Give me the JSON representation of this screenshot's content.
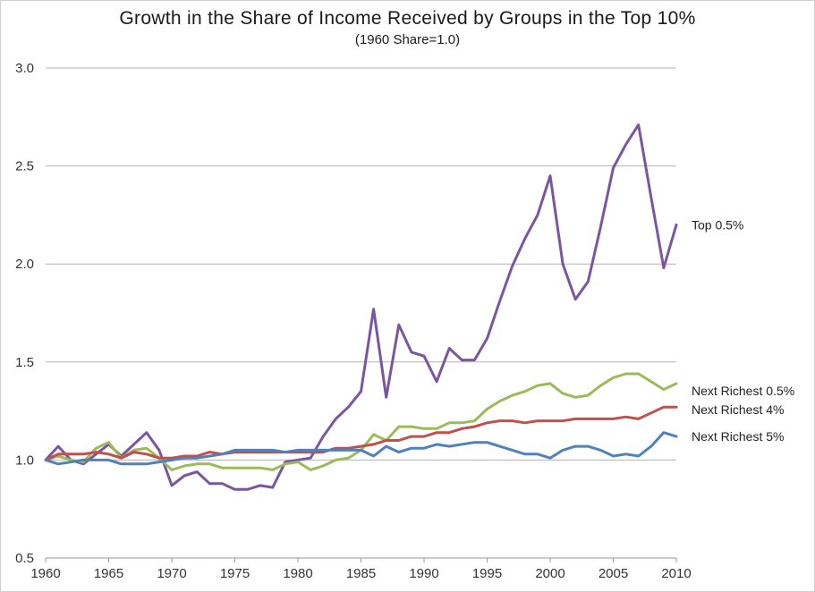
{
  "chart_data": {
    "type": "line",
    "title": "Growth in the Share of Income Received by Groups in the Top 10%",
    "subtitle": "(1960 Share=1.0)",
    "xlabel": "",
    "ylabel": "",
    "xlim": [
      1960,
      2010
    ],
    "ylim": [
      0.5,
      3.0
    ],
    "x_ticks": [
      "1960",
      "1965",
      "1970",
      "1975",
      "1980",
      "1985",
      "1990",
      "1995",
      "2000",
      "2005",
      "2010"
    ],
    "y_ticks": [
      "0.5",
      "1.0",
      "1.5",
      "2.0",
      "2.5",
      "3.0"
    ],
    "grid": "horizontal",
    "legend": "series labels at right end of lines",
    "x": [
      1960,
      1961,
      1962,
      1963,
      1964,
      1965,
      1966,
      1967,
      1968,
      1969,
      1970,
      1971,
      1972,
      1973,
      1974,
      1975,
      1976,
      1977,
      1978,
      1979,
      1980,
      1981,
      1982,
      1983,
      1984,
      1985,
      1986,
      1987,
      1988,
      1989,
      1990,
      1991,
      1992,
      1993,
      1994,
      1995,
      1996,
      1997,
      1998,
      1999,
      2000,
      2001,
      2002,
      2003,
      2004,
      2005,
      2006,
      2007,
      2008,
      2009,
      2010
    ],
    "series": [
      {
        "name": "Top 0.5%",
        "color": "#7b55a0",
        "values": [
          1.0,
          1.07,
          1.0,
          0.98,
          1.03,
          1.08,
          1.02,
          1.08,
          1.14,
          1.05,
          0.87,
          0.92,
          0.94,
          0.88,
          0.88,
          0.85,
          0.85,
          0.87,
          0.86,
          0.99,
          1.0,
          1.01,
          1.12,
          1.21,
          1.27,
          1.35,
          1.77,
          1.32,
          1.69,
          1.55,
          1.53,
          1.4,
          1.57,
          1.51,
          1.51,
          1.62,
          1.81,
          1.99,
          2.13,
          2.25,
          2.45,
          2.0,
          1.82,
          1.91,
          2.19,
          2.49,
          2.61,
          2.71,
          2.34,
          1.98,
          2.2
        ]
      },
      {
        "name": "Next Richest 0.5%",
        "color": "#9bbb59",
        "values": [
          1.0,
          1.02,
          1.0,
          0.99,
          1.06,
          1.09,
          1.01,
          1.05,
          1.06,
          1.01,
          0.95,
          0.97,
          0.98,
          0.98,
          0.96,
          0.96,
          0.96,
          0.96,
          0.95,
          0.98,
          0.99,
          0.95,
          0.97,
          1.0,
          1.01,
          1.05,
          1.13,
          1.1,
          1.17,
          1.17,
          1.16,
          1.16,
          1.19,
          1.19,
          1.2,
          1.26,
          1.3,
          1.33,
          1.35,
          1.38,
          1.39,
          1.34,
          1.32,
          1.33,
          1.38,
          1.42,
          1.44,
          1.44,
          1.4,
          1.36,
          1.39
        ]
      },
      {
        "name": "Next Richest 4%",
        "color": "#c0504d",
        "values": [
          1.0,
          1.03,
          1.03,
          1.03,
          1.04,
          1.03,
          1.01,
          1.04,
          1.03,
          1.01,
          1.01,
          1.02,
          1.02,
          1.04,
          1.03,
          1.04,
          1.04,
          1.04,
          1.04,
          1.04,
          1.04,
          1.04,
          1.04,
          1.06,
          1.06,
          1.07,
          1.08,
          1.1,
          1.1,
          1.12,
          1.12,
          1.14,
          1.14,
          1.16,
          1.17,
          1.19,
          1.2,
          1.2,
          1.19,
          1.2,
          1.2,
          1.2,
          1.21,
          1.21,
          1.21,
          1.21,
          1.22,
          1.21,
          1.24,
          1.27,
          1.27
        ]
      },
      {
        "name": "Next Richest 5%",
        "color": "#4f81bd",
        "values": [
          1.0,
          0.98,
          0.99,
          1.0,
          1.0,
          1.0,
          0.98,
          0.98,
          0.98,
          0.99,
          1.0,
          1.01,
          1.01,
          1.02,
          1.03,
          1.05,
          1.05,
          1.05,
          1.05,
          1.04,
          1.05,
          1.05,
          1.05,
          1.05,
          1.05,
          1.05,
          1.02,
          1.07,
          1.04,
          1.06,
          1.06,
          1.08,
          1.07,
          1.08,
          1.09,
          1.09,
          1.07,
          1.05,
          1.03,
          1.03,
          1.01,
          1.05,
          1.07,
          1.07,
          1.05,
          1.02,
          1.03,
          1.02,
          1.07,
          1.14,
          1.12
        ]
      }
    ]
  },
  "colors": {
    "grid": "#b3b3b3",
    "axis": "#999999",
    "background": "#ffffff"
  }
}
